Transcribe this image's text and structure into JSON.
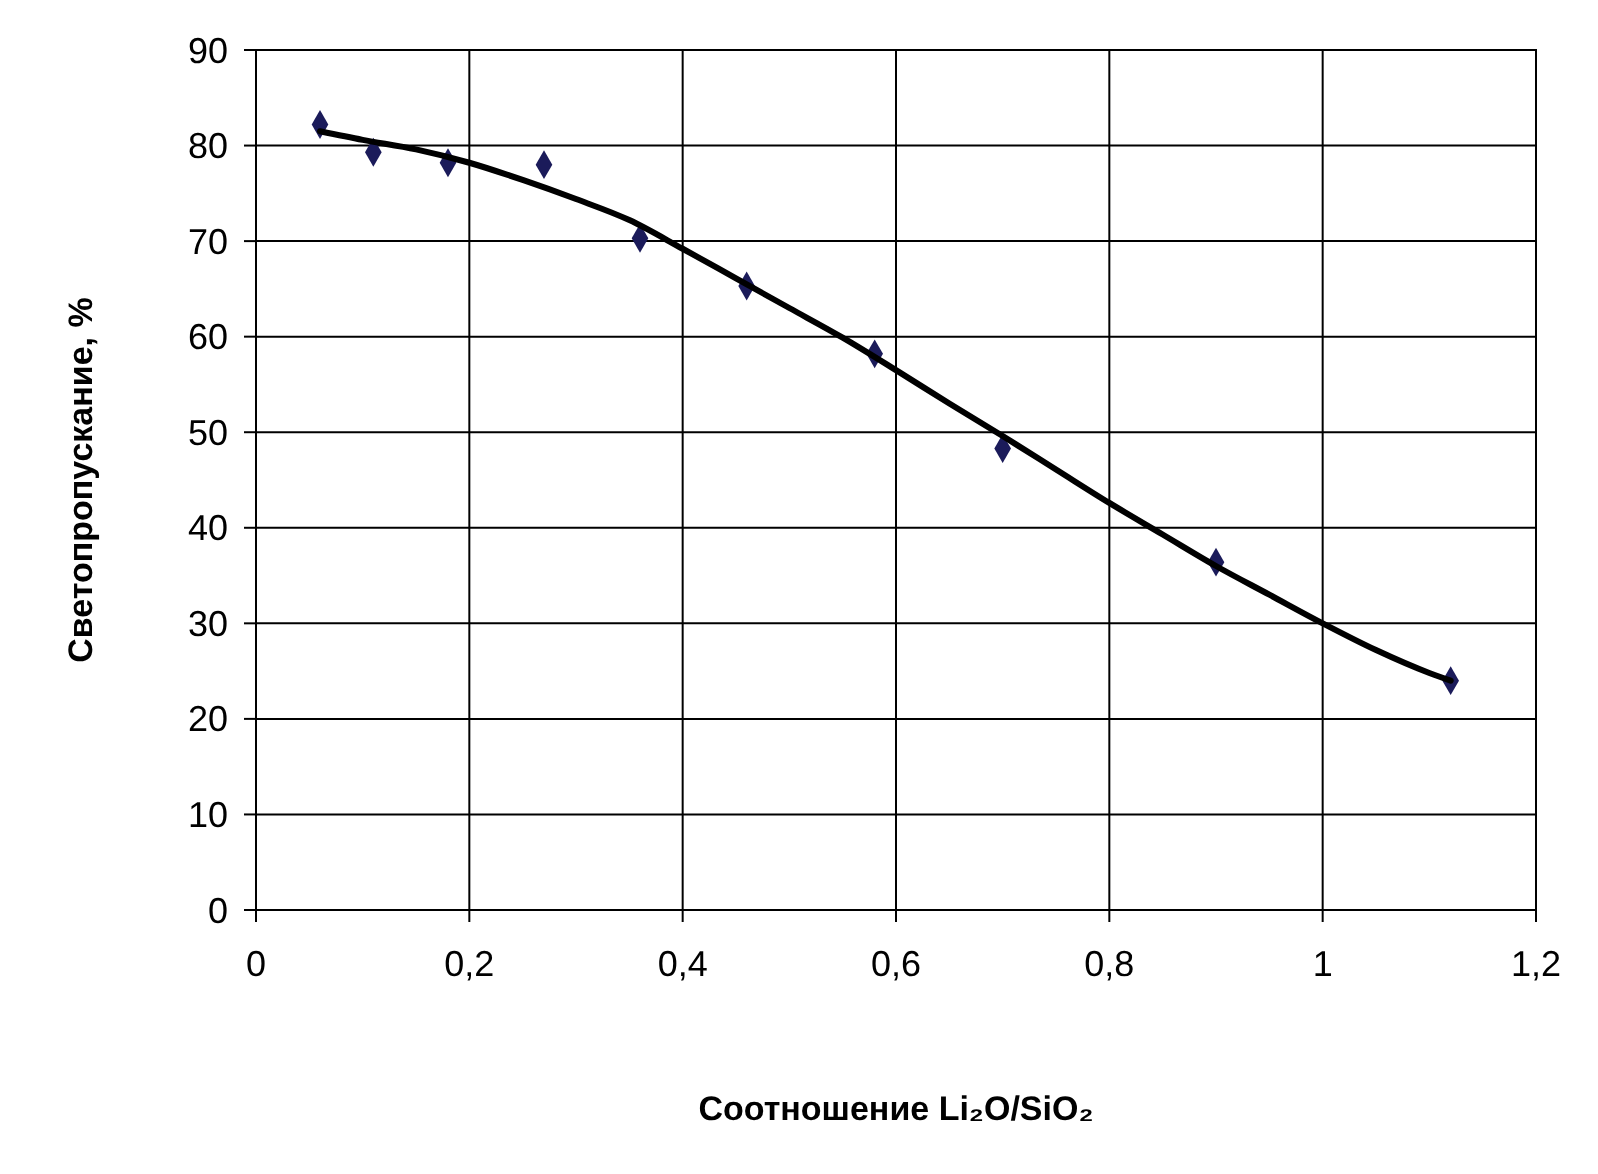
{
  "chart_data": {
    "type": "scatter",
    "xlabel": "Соотношение Li₂O/SiO₂",
    "ylabel": "Светопропускание, %",
    "xlim": [
      0,
      1.2
    ],
    "ylim": [
      0,
      90
    ],
    "xticks": [
      0,
      {
        "value": 0.2,
        "label": "0,2"
      },
      {
        "value": 0.4,
        "label": "0,4"
      },
      {
        "value": 0.6,
        "label": "0,6"
      },
      {
        "value": 0.8,
        "label": "0,8"
      },
      1,
      {
        "value": 1.2,
        "label": "1,2"
      }
    ],
    "yticks": [
      0,
      10,
      20,
      30,
      40,
      50,
      60,
      70,
      80,
      90
    ],
    "grid": true,
    "marker": "diamond",
    "series": [
      {
        "color": "#1b1b5a",
        "x": [
          0.06,
          0.11,
          0.18,
          0.27,
          0.36,
          0.46,
          0.58,
          0.7,
          0.9,
          1.12
        ],
        "values": [
          82.2,
          79.3,
          78.2,
          78,
          70.3,
          65.3,
          58.2,
          48.3,
          36.4,
          24
        ]
      },
      {
        "type": "line",
        "color": "#000000",
        "line_style": "solid",
        "marker": "none",
        "x": [
          0.06,
          0.1,
          0.15,
          0.2,
          0.25,
          0.3,
          0.35,
          0.4,
          0.45,
          0.5,
          0.55,
          0.6,
          0.65,
          0.7,
          0.75,
          0.8,
          0.85,
          0.9,
          0.95,
          1.0,
          1.05,
          1.1,
          1.12
        ],
        "values": [
          81.5,
          80.6,
          79.6,
          78.2,
          76.4,
          74.4,
          72.2,
          69.2,
          66.1,
          63,
          59.9,
          56.5,
          53,
          49.6,
          46.1,
          42.6,
          39.3,
          36,
          33,
          30,
          27.2,
          24.8,
          24
        ]
      }
    ]
  }
}
